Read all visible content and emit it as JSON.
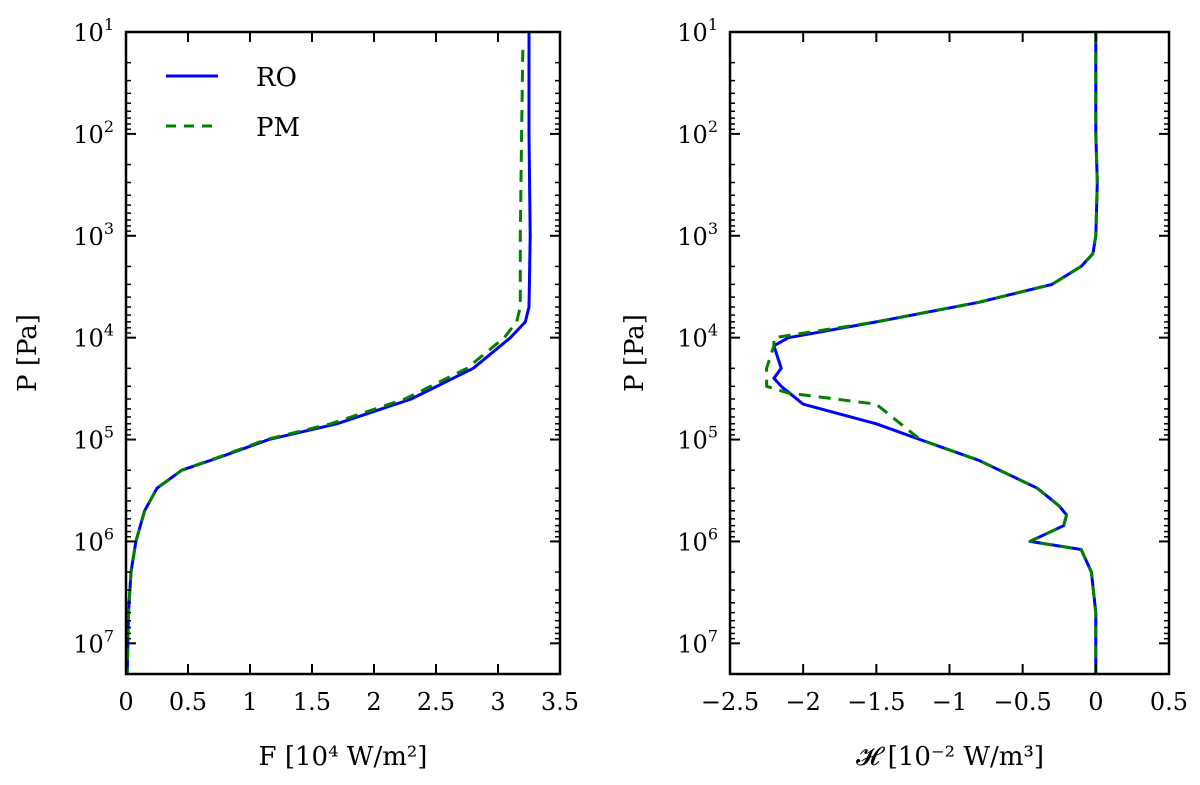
{
  "chart_data": [
    {
      "type": "line",
      "xlabel": "F [10⁴ W/m²]",
      "ylabel": "P [Pa]",
      "xlim": [
        0,
        3.5
      ],
      "ylim": [
        10,
        20000000
      ],
      "y_scale": "log",
      "y_inverted": true,
      "x_ticks": [
        "0",
        "0.5",
        "1",
        "1.5",
        "2",
        "2.5",
        "3",
        "3.5"
      ],
      "y_ticks": [
        {
          "base": "10",
          "exp": "1"
        },
        {
          "base": "10",
          "exp": "2"
        },
        {
          "base": "10",
          "exp": "3"
        },
        {
          "base": "10",
          "exp": "4"
        },
        {
          "base": "10",
          "exp": "5"
        },
        {
          "base": "10",
          "exp": "6"
        },
        {
          "base": "10",
          "exp": "7"
        }
      ],
      "legend": {
        "placement": "top-left"
      },
      "grid": false,
      "series": [
        {
          "name": "RO",
          "color": "#0000ff",
          "style": "solid",
          "x": [
            3.25,
            3.25,
            3.26,
            3.25,
            3.22,
            3.1,
            2.8,
            2.3,
            1.7,
            1.15,
            0.75,
            0.45,
            0.25,
            0.15,
            0.08,
            0.04,
            0.02,
            0.01
          ],
          "y": [
            10,
            100,
            1000,
            5000,
            7000,
            10000,
            20000,
            40000,
            70000,
            100000,
            150000,
            200000,
            300000,
            500000,
            1000000,
            2000000,
            5000000,
            20000000
          ]
        },
        {
          "name": "PM",
          "color": "#008000",
          "style": "dashed",
          "x": [
            3.2,
            3.19,
            3.18,
            3.18,
            3.15,
            3.05,
            2.75,
            2.25,
            1.65,
            1.13,
            0.74,
            0.45,
            0.25,
            0.15,
            0.08,
            0.04,
            0.02,
            0.01
          ],
          "y": [
            15,
            100,
            1000,
            5000,
            7000,
            10000,
            20000,
            40000,
            70000,
            100000,
            150000,
            200000,
            300000,
            500000,
            1000000,
            2000000,
            5000000,
            20000000
          ]
        }
      ]
    },
    {
      "type": "line",
      "xlabel": "𝓗 [10⁻² W/m³]",
      "ylabel": "P [Pa]",
      "xlim": [
        -2.5,
        0.5
      ],
      "ylim": [
        10,
        20000000
      ],
      "y_scale": "log",
      "y_inverted": true,
      "x_ticks": [
        "−2.5",
        "−2",
        "−1.5",
        "−1",
        "−0.5",
        "0",
        "0.5"
      ],
      "y_ticks": [
        {
          "base": "10",
          "exp": "1"
        },
        {
          "base": "10",
          "exp": "2"
        },
        {
          "base": "10",
          "exp": "3"
        },
        {
          "base": "10",
          "exp": "4"
        },
        {
          "base": "10",
          "exp": "5"
        },
        {
          "base": "10",
          "exp": "6"
        },
        {
          "base": "10",
          "exp": "7"
        }
      ],
      "grid": false,
      "series": [
        {
          "name": "RO",
          "color": "#0000ff",
          "style": "solid",
          "x": [
            0.0,
            0.0,
            0.01,
            0.0,
            -0.02,
            -0.1,
            -0.3,
            -0.8,
            -1.5,
            -2.1,
            -2.2,
            -2.15,
            -2.2,
            -2.15,
            -2.0,
            -1.5,
            -1.2,
            -0.8,
            -0.4,
            -0.25,
            -0.2,
            -0.22,
            -0.45,
            -0.1,
            -0.03,
            0.0,
            0.0
          ],
          "y": [
            10,
            100,
            300,
            1000,
            1500,
            2000,
            3000,
            4500,
            7000,
            10000,
            12000,
            20000,
            25000,
            30000,
            45000,
            70000,
            100000,
            160000,
            300000,
            450000,
            550000,
            700000,
            1000000,
            1200000,
            2000000,
            5000000,
            20000000
          ]
        },
        {
          "name": "PM",
          "color": "#008000",
          "style": "dashed",
          "x": [
            0.0,
            0.0,
            0.01,
            0.0,
            -0.02,
            -0.1,
            -0.3,
            -0.8,
            -1.5,
            -2.2,
            -2.2,
            -2.25,
            -2.25,
            -2.1,
            -1.5,
            -1.2,
            -0.8,
            -0.4,
            -0.25,
            -0.2,
            -0.22,
            -0.45,
            -0.1,
            -0.03,
            0.0,
            0.0
          ],
          "y": [
            10,
            100,
            300,
            1000,
            1500,
            2000,
            3000,
            4500,
            7000,
            10000,
            12000,
            20000,
            30000,
            35000,
            45000,
            100000,
            160000,
            300000,
            450000,
            550000,
            700000,
            1000000,
            1200000,
            2000000,
            5000000,
            20000000
          ]
        }
      ]
    }
  ]
}
